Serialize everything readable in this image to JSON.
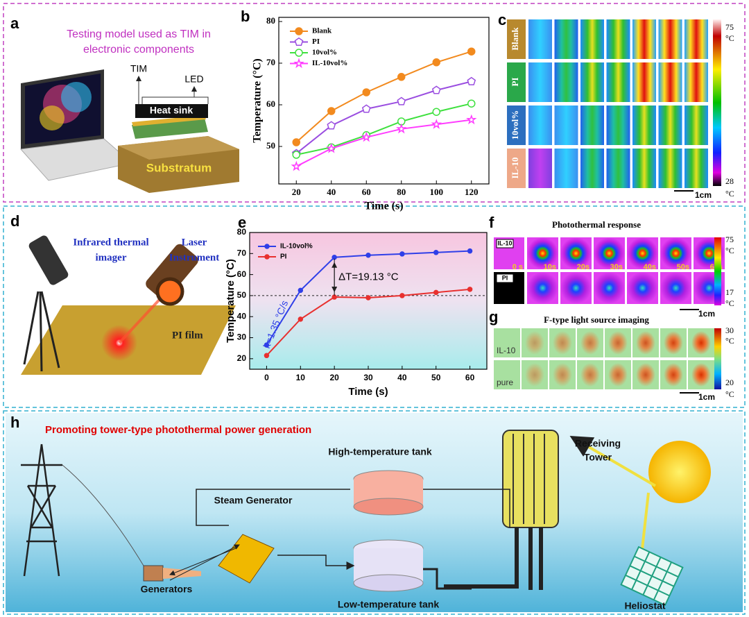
{
  "chart_data": [
    {
      "type": "line",
      "xlabel": "Time (s)",
      "ylabel": "Temperature (°C)",
      "x": [
        20,
        40,
        60,
        80,
        100,
        120
      ],
      "xlim": [
        10,
        130
      ],
      "xticks": [
        20,
        40,
        60,
        80,
        100,
        120
      ],
      "ylim": [
        41,
        81
      ],
      "yticks": [
        50,
        60,
        70,
        80
      ],
      "grid": false,
      "legend": "upper left",
      "series": [
        {
          "name": "Blank",
          "color": "#f28a1e",
          "marker": "circle",
          "values": [
            51,
            58.5,
            63,
            66.7,
            70.2,
            72.8
          ]
        },
        {
          "name": "PI",
          "color": "#9a4de0",
          "marker": "pentagon",
          "values": [
            48.3,
            55,
            59,
            60.8,
            63.5,
            65.6
          ]
        },
        {
          "name": "10vol%",
          "color": "#3ee03e",
          "marker": "circle-open",
          "values": [
            48,
            49.8,
            52.7,
            56,
            58.3,
            60.3
          ]
        },
        {
          "name": "IL-10vol%",
          "color": "#ff3cff",
          "marker": "star",
          "values": [
            45.2,
            49.5,
            52.2,
            54.2,
            55.3,
            56.4
          ]
        }
      ]
    },
    {
      "type": "line",
      "xlabel": "Time (s)",
      "ylabel": "Temperature (°C)",
      "x": [
        0,
        10,
        20,
        30,
        40,
        50,
        60
      ],
      "xlim": [
        -5,
        65
      ],
      "xticks": [
        0,
        10,
        20,
        30,
        40,
        50,
        60
      ],
      "ylim": [
        15,
        80
      ],
      "yticks": [
        20,
        30,
        40,
        50,
        60,
        70,
        80
      ],
      "grid": false,
      "legend": "upper left",
      "reference_line": 50,
      "delta_annotation": "ΔT=19.13 °C",
      "slope_annotation": "k=1.35 °C/s",
      "series": [
        {
          "name": "IL-10vol%",
          "color": "#2f3fe8",
          "marker": "circle",
          "values": [
            26.5,
            52.5,
            68.2,
            69.2,
            69.8,
            70.5,
            71.2
          ]
        },
        {
          "name": "PI",
          "color": "#e8302f",
          "marker": "circle",
          "values": [
            21.5,
            38.8,
            49.3,
            49,
            50,
            51.5,
            53
          ]
        }
      ]
    }
  ],
  "labels": [
    "a",
    "b",
    "c",
    "d",
    "e",
    "f",
    "g",
    "h"
  ],
  "panel_a": {
    "title_lines": [
      "Testing model used as TIM in",
      "electronic components"
    ],
    "tim": "TIM",
    "led": "LED",
    "heat_sink": "Heat sink",
    "substratum": "Substratum"
  },
  "panel_c": {
    "rows": [
      "Blank",
      "PI",
      "10vol%",
      "IL-10"
    ],
    "scale_max": "75",
    "scale_min": "28",
    "unit": "°C",
    "scale_bar": "1cm"
  },
  "panel_d": {
    "imager_lines": [
      "Infrared thermal",
      "imager"
    ],
    "laser_lines": [
      "Laser",
      "Instrument"
    ],
    "film": "PI film"
  },
  "panel_f": {
    "title": "Photothermal response",
    "rows": [
      "IL-10",
      "PI"
    ],
    "times": [
      "0 s",
      "10s",
      "20s",
      "30s",
      "40s",
      "50s",
      "60s"
    ],
    "scale_max": "75",
    "scale_min": "17",
    "unit": "°C",
    "scale_bar": "1cm"
  },
  "panel_g": {
    "title": "F-type light source imaging",
    "rows": [
      "IL-10",
      "pure"
    ],
    "scale_max": "30",
    "scale_min": "20",
    "unit": "°C",
    "scale_bar": "1cm"
  },
  "panel_h": {
    "title": "Promoting tower-type photothermal power generation",
    "high_tank": "High-temperature tank",
    "steam": "Steam Generator",
    "tower_lines": [
      "Receiving",
      "Tower"
    ],
    "generators": "Generators",
    "low_tank": "Low-temperature tank",
    "heliostat": "Heliostat"
  }
}
